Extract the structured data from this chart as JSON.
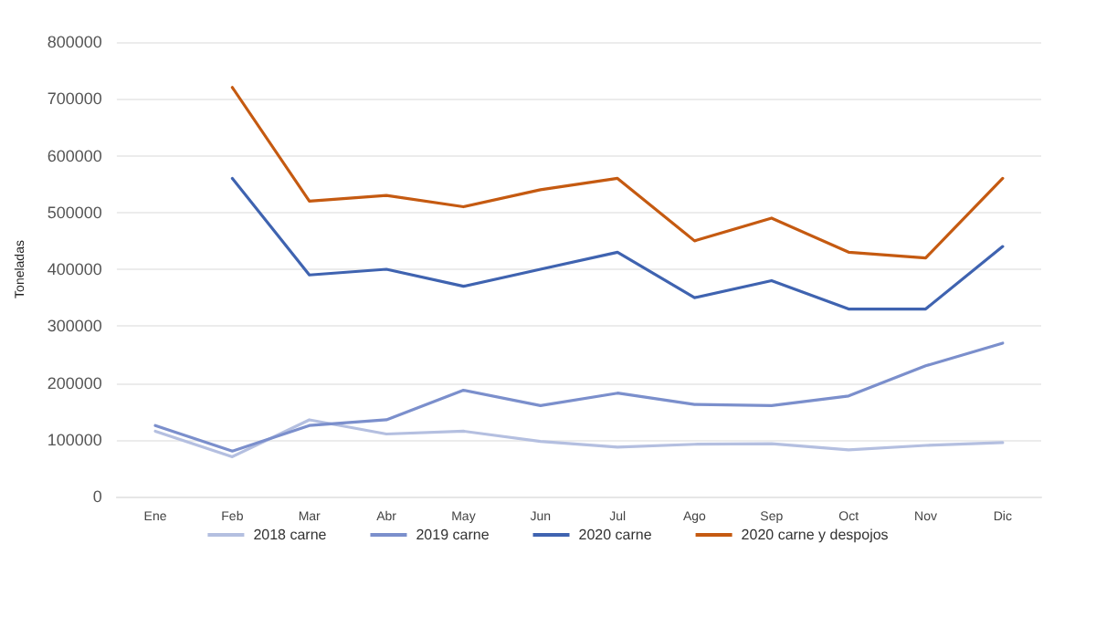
{
  "chart_data": {
    "type": "line",
    "ylabel": "Toneladas",
    "categories": [
      "Ene",
      "Feb",
      "Mar",
      "Abr",
      "May",
      "Jun",
      "Jul",
      "Ago",
      "Sep",
      "Oct",
      "Nov",
      "Dic"
    ],
    "series": [
      {
        "name": "2018 carne",
        "color": "#b4bfe0",
        "values": [
          115000,
          70000,
          135000,
          110000,
          115000,
          97000,
          87000,
          92000,
          93000,
          82000,
          90000,
          95000
        ]
      },
      {
        "name": "2019 carne",
        "color": "#7b8fcc",
        "values": [
          125000,
          80000,
          125000,
          135000,
          187000,
          160000,
          182000,
          162000,
          160000,
          177000,
          230000,
          270000
        ]
      },
      {
        "name": "2020 carne",
        "color": "#3f63b0",
        "values": [
          null,
          560000,
          390000,
          400000,
          370000,
          400000,
          430000,
          350000,
          380000,
          330000,
          330000,
          440000
        ]
      },
      {
        "name": "2020 carne y despojos",
        "color": "#c55a11",
        "values": [
          null,
          720000,
          520000,
          530000,
          510000,
          540000,
          560000,
          450000,
          490000,
          430000,
          420000,
          560000
        ]
      }
    ],
    "ylim": [
      0,
      800000
    ],
    "yticks": [
      0,
      100000,
      200000,
      300000,
      400000,
      500000,
      600000,
      700000,
      800000
    ],
    "grid": "y",
    "legend": "bottom",
    "marker": "none",
    "line_style": "solid"
  }
}
